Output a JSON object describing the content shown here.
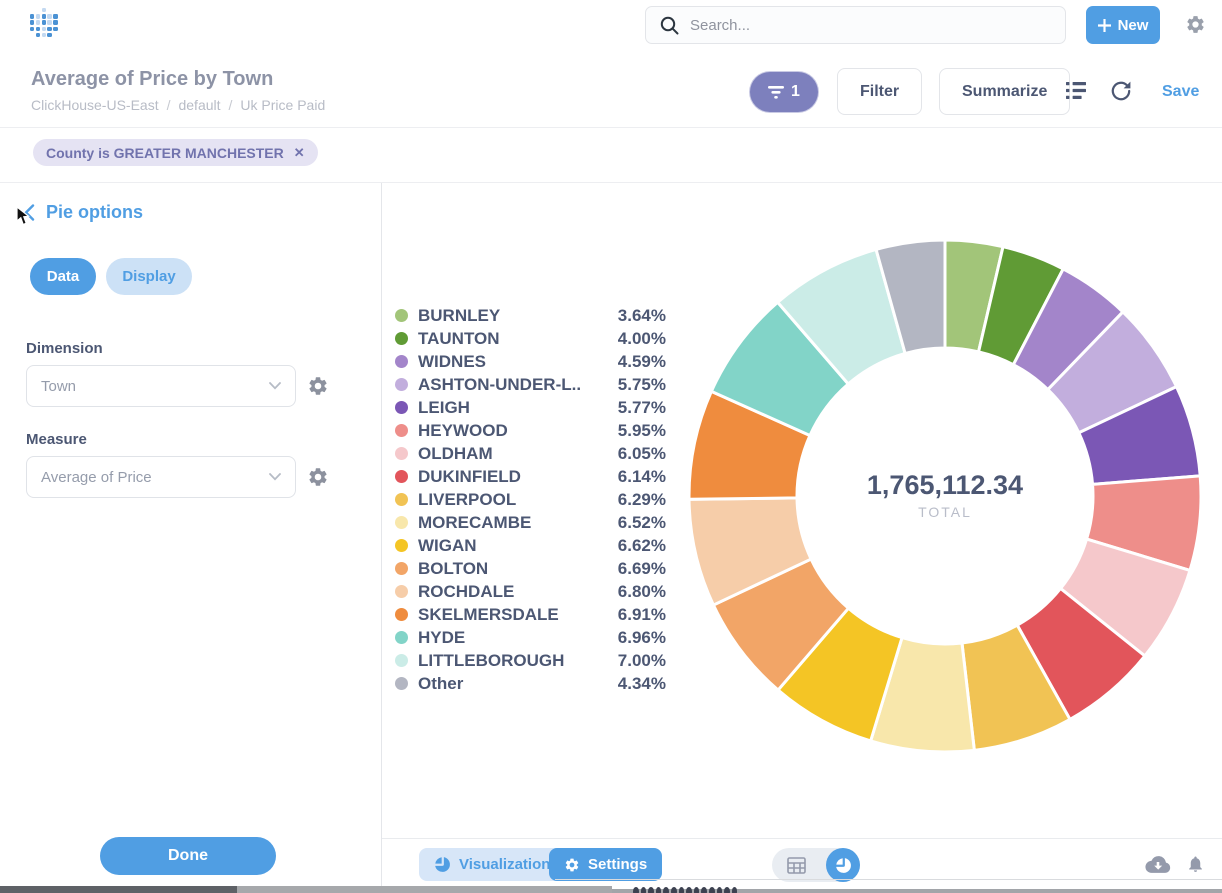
{
  "header": {
    "search_placeholder": "Search...",
    "new_button_label": "New"
  },
  "question": {
    "title": "Average of Price by Town",
    "breadcrumb": [
      "ClickHouse-US-East",
      "default",
      "Uk Price Paid"
    ],
    "breadcrumb_separator": "/",
    "filter_count": "1",
    "filter_button_label": "Filter",
    "summarize_button_label": "Summarize",
    "save_label": "Save",
    "filter_chip_label": "County is GREATER MANCHESTER",
    "filter_chip_close": "✕"
  },
  "sidebar": {
    "title": "Pie options",
    "tabs": [
      {
        "label": "Data",
        "active": true
      },
      {
        "label": "Display",
        "active": false
      }
    ],
    "dimension_label": "Dimension",
    "dimension_value": "Town",
    "measure_label": "Measure",
    "measure_value": "Average of Price",
    "done_button_label": "Done"
  },
  "footer": {
    "visualization_button_label": "Visualization",
    "settings_button_label": "Settings"
  },
  "chart_data": {
    "type": "pie",
    "title": "Average of Price by Town",
    "total_value": "1,765,112.34",
    "total_label": "TOTAL",
    "legend_position": "left",
    "donut": true,
    "series": [
      {
        "name": "BURNLEY",
        "pct": 3.64,
        "label": "3.64%",
        "color": "#a2c579"
      },
      {
        "name": "TAUNTON",
        "pct": 4.0,
        "label": "4.00%",
        "color": "#609b35"
      },
      {
        "name": "WIDNES",
        "pct": 4.59,
        "label": "4.59%",
        "color": "#a385ca"
      },
      {
        "name": "ASHTON-UNDER-L..",
        "pct": 5.75,
        "label": "5.75%",
        "color": "#c2aedd"
      },
      {
        "name": "LEIGH",
        "pct": 5.77,
        "label": "5.77%",
        "color": "#7b57b5"
      },
      {
        "name": "HEYWOOD",
        "pct": 5.95,
        "label": "5.95%",
        "color": "#ee8e8a"
      },
      {
        "name": "OLDHAM",
        "pct": 6.05,
        "label": "6.05%",
        "color": "#f5c8cb"
      },
      {
        "name": "DUKINFIELD",
        "pct": 6.14,
        "label": "6.14%",
        "color": "#e2555b"
      },
      {
        "name": "LIVERPOOL",
        "pct": 6.29,
        "label": "6.29%",
        "color": "#f1c354"
      },
      {
        "name": "MORECAMBE",
        "pct": 6.52,
        "label": "6.52%",
        "color": "#f8e7ab"
      },
      {
        "name": "WIGAN",
        "pct": 6.62,
        "label": "6.62%",
        "color": "#f4c525"
      },
      {
        "name": "BOLTON",
        "pct": 6.69,
        "label": "6.69%",
        "color": "#f2a567"
      },
      {
        "name": "ROCHDALE",
        "pct": 6.8,
        "label": "6.80%",
        "color": "#f6cda9"
      },
      {
        "name": "SKELMERSDALE",
        "pct": 6.91,
        "label": "6.91%",
        "color": "#ef8c3e"
      },
      {
        "name": "HYDE",
        "pct": 6.96,
        "label": "6.96%",
        "color": "#82d4c8"
      },
      {
        "name": "LITTLEBOROUGH",
        "pct": 7.0,
        "label": "7.00%",
        "color": "#cbece7"
      },
      {
        "name": "Other",
        "pct": 4.34,
        "label": "4.34%",
        "color": "#b3b6c2"
      }
    ]
  },
  "icons": [
    "metabase-logo",
    "search-icon",
    "plus-icon",
    "gear-icon",
    "funnel-icon",
    "notebook-icon",
    "refresh-icon",
    "close-icon",
    "chevron-left-icon",
    "chevron-down-icon",
    "pie-chart-icon",
    "table-icon",
    "download-icon",
    "bell-icon",
    "cursor-pointer"
  ],
  "colors": {
    "brand_blue": "#509ee3",
    "filter_purple": "#7d80bd",
    "text_dark": "#4c5773",
    "text_muted": "#949aab"
  }
}
